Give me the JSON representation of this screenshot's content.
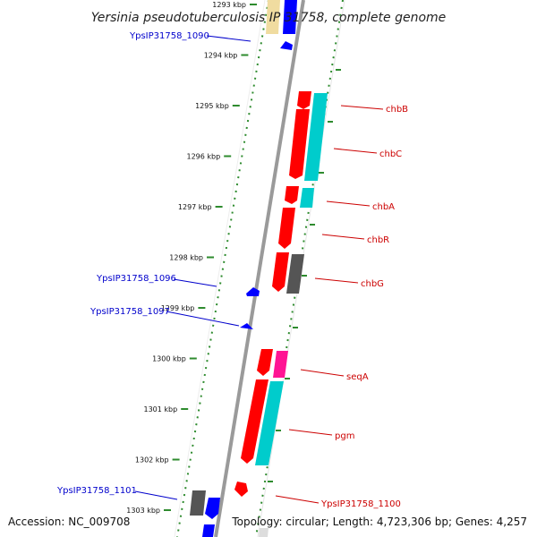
{
  "title": "Yersinia pseudotuberculosis IP 31758, complete genome",
  "accession": "Accession: NC_009708",
  "topology": "Topology: circular; Length: 4,723,306 bp; Genes: 4,257",
  "ticks": [
    {
      "label": "1293 kbp"
    },
    {
      "label": "1294 kbp"
    },
    {
      "label": "1295 kbp"
    },
    {
      "label": "1296 kbp"
    },
    {
      "label": "1297 kbp"
    },
    {
      "label": "1298 kbp"
    },
    {
      "label": "1299 kbp"
    },
    {
      "label": "1300 kbp"
    },
    {
      "label": "1301 kbp"
    },
    {
      "label": "1302 kbp"
    },
    {
      "label": "1303 kbp"
    }
  ],
  "genes": [
    {
      "name": "YpsIP31758_1090",
      "color": "#0000cc"
    },
    {
      "name": "chbB",
      "color": "#cc0000"
    },
    {
      "name": "chbC",
      "color": "#cc0000"
    },
    {
      "name": "chbA",
      "color": "#cc0000"
    },
    {
      "name": "chbR",
      "color": "#cc0000"
    },
    {
      "name": "chbG",
      "color": "#cc0000"
    },
    {
      "name": "YpsIP31758_1096",
      "color": "#0000cc"
    },
    {
      "name": "YpsIP31758_1097",
      "color": "#0000cc"
    },
    {
      "name": "seqA",
      "color": "#cc0000"
    },
    {
      "name": "pgm",
      "color": "#cc0000"
    },
    {
      "name": "YpsIP31758_1100",
      "color": "#cc0000"
    },
    {
      "name": "YpsIP31758_1101",
      "color": "#0000cc"
    }
  ],
  "colors": {
    "backbone": "#999999",
    "dots": "#2e8b2e",
    "red_feature": "#ff0000",
    "cyan_feature": "#00cccc",
    "blue_feature": "#0000ff",
    "gray_feature": "#555555",
    "magenta_feature": "#ff1493",
    "yellow_feature": "#f0dca0"
  }
}
